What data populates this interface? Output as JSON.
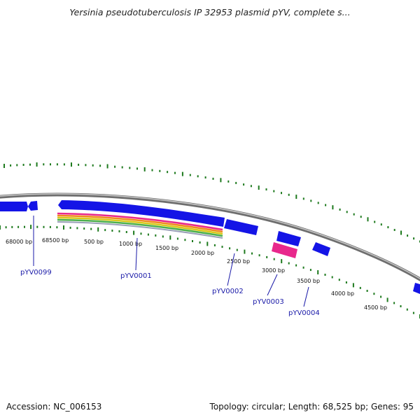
{
  "title": "Yersinia pseudotuberculosis IP 32953 plasmid pYV, complete s...",
  "footer": {
    "accession": "Accession: NC_006153",
    "summary": "Topology: circular; Length: 68,525 bp; Genes: 95"
  },
  "map": {
    "tick_labels": [
      "68000 bp",
      "68500 bp",
      "500 bp",
      "1000 bp",
      "1500 bp",
      "2000 bp",
      "2500 bp",
      "3000 bp",
      "3500 bp",
      "4000 bp",
      "4500 bp"
    ],
    "gene_labels": [
      "pYV0099",
      "pYV0001",
      "pYV0002",
      "pYV0003",
      "pYV0004"
    ],
    "colors": {
      "backbone": "#8a8a8a",
      "gene": "#1414e6",
      "pink_feature": "#e8288c",
      "tick": "#1e7a1e",
      "label": "#1a1aa8"
    }
  }
}
